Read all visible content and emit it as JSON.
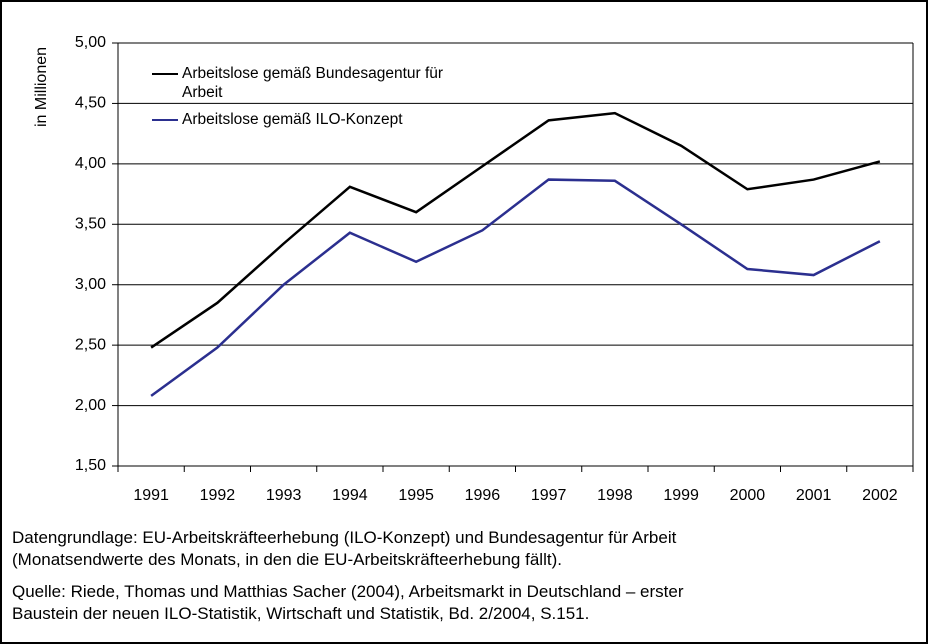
{
  "chart_data": {
    "type": "line",
    "ylabel": "in Millionen",
    "categories": [
      "1991",
      "1992",
      "1993",
      "1994",
      "1995",
      "1996",
      "1997",
      "1998",
      "1999",
      "2000",
      "2001",
      "2002"
    ],
    "series": [
      {
        "name": "Arbeitslose gemäß Bundesagentur für Arbeit",
        "color": "#000000",
        "values": [
          2.48,
          2.85,
          3.34,
          3.81,
          3.6,
          3.98,
          4.36,
          4.42,
          4.15,
          3.79,
          3.87,
          4.02
        ]
      },
      {
        "name": "Arbeitslose gemäß ILO-Konzept",
        "color": "#2b2f8f",
        "values": [
          2.08,
          2.48,
          3.0,
          3.43,
          3.19,
          3.45,
          3.87,
          3.86,
          3.5,
          3.13,
          3.08,
          3.36
        ]
      }
    ],
    "ylim": [
      1.5,
      5.0
    ],
    "yticks": [
      {
        "value": 1.5,
        "label": "1,50"
      },
      {
        "value": 2.0,
        "label": "2,00"
      },
      {
        "value": 2.5,
        "label": "2,50"
      },
      {
        "value": 3.0,
        "label": "3,00"
      },
      {
        "value": 3.5,
        "label": "3,50"
      },
      {
        "value": 4.0,
        "label": "4,00"
      },
      {
        "value": 4.5,
        "label": "4,50"
      },
      {
        "value": 5.0,
        "label": "5,00"
      }
    ],
    "grid": true,
    "legend": "upper left",
    "notes": [
      [
        "Datengrundlage: EU-Arbeitskräfteerhebung (ILO-Konzept) und Bundesagentur für Arbeit",
        "(Monatsendwerte des Monats, in den die EU-Arbeitskräfteerhebung fällt)."
      ],
      [
        "Quelle: Riede, Thomas und Matthias Sacher (2004), Arbeitsmarkt in Deutschland – erster",
        "Baustein der neuen ILO-Statistik, Wirtschaft und Statistik, Bd. 2/2004, S.151."
      ]
    ]
  }
}
